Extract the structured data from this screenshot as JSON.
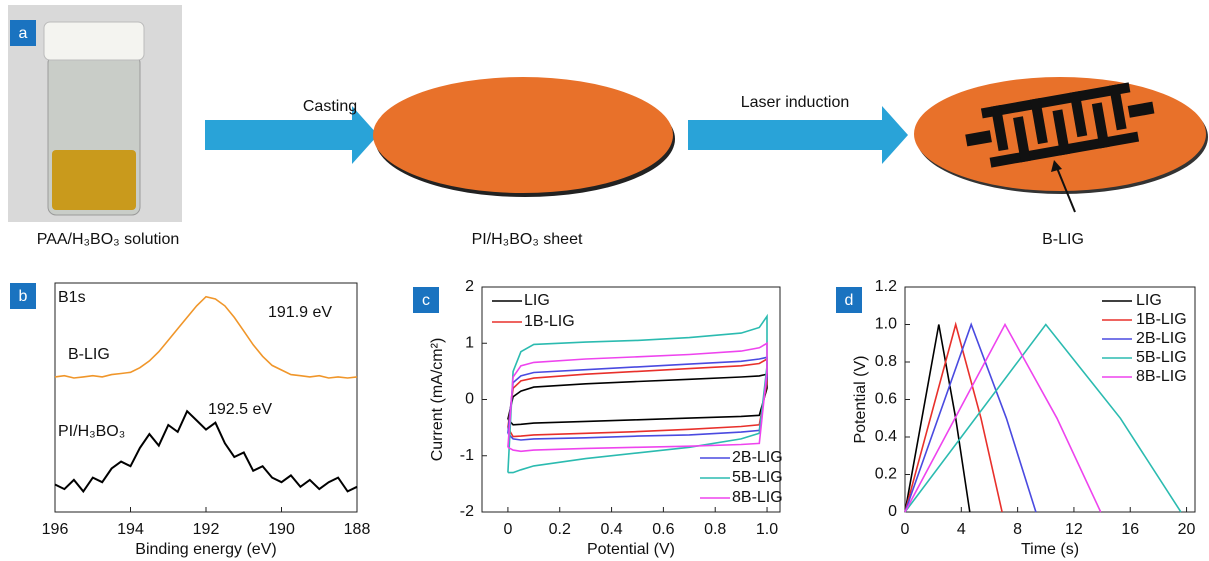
{
  "schematic": {
    "panel_label": "a",
    "steps": [
      "Casting",
      "Laser induction"
    ],
    "labels": [
      "PAA/H₃BO₃ solution",
      "PI/H₃BO₃ sheet",
      "B-LIG"
    ]
  },
  "chart_data": [
    {
      "type": "line",
      "panel_label": "b",
      "xlabel": "Binding energy (eV)",
      "xlim": [
        196,
        188
      ],
      "xticks": [
        196,
        194,
        192,
        190,
        188
      ],
      "ylim": [
        0,
        10
      ],
      "annotations": [
        "B1s",
        "191.9 eV",
        "192.5 eV"
      ],
      "x": [
        196,
        195.75,
        195.5,
        195.25,
        195,
        194.75,
        194.5,
        194.25,
        194,
        193.75,
        193.5,
        193.25,
        193,
        192.75,
        192.5,
        192.25,
        192,
        191.75,
        191.5,
        191.25,
        191,
        190.75,
        190.5,
        190.25,
        190,
        189.75,
        189.5,
        189.25,
        189,
        188.75,
        188.5,
        188.25,
        188
      ],
      "series": [
        {
          "name": "B-LIG",
          "color": "#f0962a",
          "values": [
            5.9,
            5.95,
            5.85,
            5.9,
            5.95,
            5.9,
            6.0,
            6.05,
            6.1,
            6.3,
            6.6,
            7.0,
            7.5,
            8.0,
            8.5,
            9.0,
            9.4,
            9.3,
            9.0,
            8.5,
            7.9,
            7.3,
            6.8,
            6.4,
            6.2,
            6.0,
            5.95,
            5.9,
            5.95,
            5.85,
            5.9,
            5.85,
            5.9
          ]
        },
        {
          "name": "PI/H₃BO₃",
          "color": "#000000",
          "values": [
            1.2,
            1.0,
            1.4,
            0.9,
            1.5,
            1.3,
            1.9,
            2.2,
            2.0,
            2.8,
            3.4,
            2.9,
            3.8,
            3.5,
            4.4,
            4.0,
            3.6,
            3.9,
            3.0,
            2.4,
            2.6,
            1.8,
            2.0,
            1.5,
            1.3,
            1.6,
            1.1,
            1.4,
            1.0,
            1.3,
            1.5,
            0.9,
            1.1
          ]
        }
      ]
    },
    {
      "type": "line",
      "panel_label": "c",
      "xlabel": "Potential (V)",
      "ylabel": "Current (mA/cm²)",
      "xlim": [
        -0.1,
        1.05
      ],
      "xticks": [
        0,
        0.2,
        0.4,
        0.6,
        0.8,
        {
          "value": 1,
          "label": "1.0"
        }
      ],
      "ylim": [
        -2,
        2
      ],
      "yticks": [
        -2,
        -1,
        0,
        1,
        2
      ],
      "x": [
        0,
        0.02,
        0.05,
        0.1,
        0.3,
        0.5,
        0.7,
        0.9,
        0.97,
        1.0,
        1.0,
        0.97,
        0.9,
        0.7,
        0.5,
        0.3,
        0.1,
        0.05,
        0.02,
        0
      ],
      "series": [
        {
          "name": "LIG",
          "color": "#000000",
          "values": [
            -0.35,
            0.05,
            0.15,
            0.22,
            0.28,
            0.32,
            0.36,
            0.4,
            0.42,
            0.45,
            0.2,
            -0.28,
            -0.3,
            -0.33,
            -0.36,
            -0.39,
            -0.42,
            -0.44,
            -0.45,
            -0.35
          ]
        },
        {
          "name": "1B-LIG",
          "color": "#e8302b",
          "values": [
            -0.5,
            0.2,
            0.33,
            0.38,
            0.45,
            0.5,
            0.55,
            0.6,
            0.64,
            0.72,
            0.3,
            -0.45,
            -0.48,
            -0.53,
            -0.57,
            -0.6,
            -0.63,
            -0.65,
            -0.66,
            -0.5
          ]
        },
        {
          "name": "2B-LIG",
          "color": "#4a4ae0",
          "values": [
            -0.6,
            0.3,
            0.42,
            0.48,
            0.53,
            0.58,
            0.63,
            0.68,
            0.72,
            0.75,
            0.4,
            -0.55,
            -0.58,
            -0.63,
            -0.65,
            -0.68,
            -0.7,
            -0.72,
            -0.7,
            -0.6
          ]
        },
        {
          "name": "5B-LIG",
          "color": "#2bbbb0",
          "values": [
            -1.3,
            0.5,
            0.85,
            0.98,
            1.02,
            1.05,
            1.1,
            1.18,
            1.28,
            1.48,
            0.6,
            -0.6,
            -0.7,
            -0.85,
            -0.95,
            -1.05,
            -1.18,
            -1.25,
            -1.3,
            -1.3
          ]
        },
        {
          "name": "8B-LIG",
          "color": "#ee44ee",
          "values": [
            -0.85,
            0.4,
            0.6,
            0.66,
            0.72,
            0.76,
            0.8,
            0.86,
            0.92,
            1.0,
            0.5,
            -0.78,
            -0.8,
            -0.83,
            -0.85,
            -0.87,
            -0.9,
            -0.92,
            -0.9,
            -0.85
          ]
        }
      ]
    },
    {
      "type": "line",
      "panel_label": "d",
      "xlabel": "Time (s)",
      "ylabel": "Potential (V)",
      "xlim": [
        0,
        20.6
      ],
      "xticks": [
        0,
        4,
        8,
        12,
        16,
        20
      ],
      "ylim": [
        0,
        1.2
      ],
      "yticks": [
        0,
        0.2,
        0.4,
        0.6,
        0.8,
        {
          "value": 1,
          "label": "1.0"
        },
        1.2
      ],
      "series": [
        {
          "name": "LIG",
          "color": "#000000",
          "x": [
            0,
            2.4,
            3.6,
            4.6
          ],
          "values": [
            0,
            1,
            0.5,
            0
          ]
        },
        {
          "name": "1B-LIG",
          "color": "#e8302b",
          "x": [
            0,
            3.6,
            5.4,
            6.9
          ],
          "values": [
            0,
            1,
            0.5,
            0
          ]
        },
        {
          "name": "2B-LIG",
          "color": "#4a4ae0",
          "x": [
            0,
            4.7,
            7.2,
            9.3
          ],
          "values": [
            0,
            1,
            0.5,
            0
          ]
        },
        {
          "name": "5B-LIG",
          "color": "#2bbbb0",
          "x": [
            0,
            10,
            15.3,
            19.6
          ],
          "values": [
            0,
            1,
            0.5,
            0
          ]
        },
        {
          "name": "8B-LIG",
          "color": "#ee44ee",
          "x": [
            0,
            7.1,
            10.8,
            13.9
          ],
          "values": [
            0,
            1,
            0.5,
            0
          ]
        }
      ]
    }
  ]
}
